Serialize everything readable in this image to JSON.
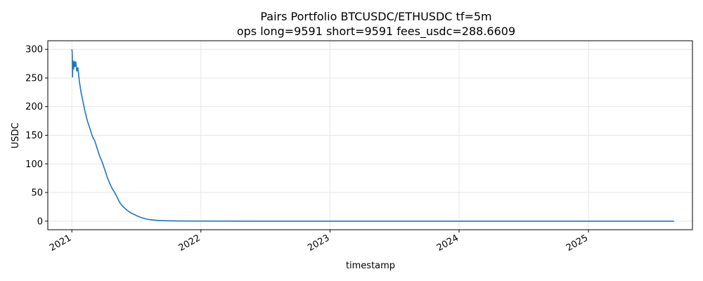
{
  "chart_data": {
    "type": "line",
    "title_lines": [
      "Pairs Portfolio BTCUSDC/ETHUSDC tf=5m",
      "ops long=9591 short=9591 fees_usdc=288.6609"
    ],
    "xlabel": "timestamp",
    "ylabel": "USDC",
    "xlim": [
      "2020-10-25",
      "2025-10-22"
    ],
    "ylim": [
      -15,
      315
    ],
    "x_ticks": [
      {
        "value": "2021-01-01",
        "label": "2021"
      },
      {
        "value": "2022-01-01",
        "label": "2022"
      },
      {
        "value": "2023-01-01",
        "label": "2023"
      },
      {
        "value": "2024-01-01",
        "label": "2024"
      },
      {
        "value": "2025-01-01",
        "label": "2025"
      }
    ],
    "y_ticks": [
      {
        "value": 0,
        "label": "0"
      },
      {
        "value": 50,
        "label": "50"
      },
      {
        "value": 100,
        "label": "100"
      },
      {
        "value": 150,
        "label": "150"
      },
      {
        "value": 200,
        "label": "200"
      },
      {
        "value": 250,
        "label": "250"
      },
      {
        "value": 300,
        "label": "300"
      }
    ],
    "grid": true,
    "series": [
      {
        "color": "#1f77b4",
        "points": [
          [
            "2021-01-01",
            300
          ],
          [
            "2021-01-02",
            295
          ],
          [
            "2021-01-03",
            252
          ],
          [
            "2021-01-04",
            280
          ],
          [
            "2021-01-06",
            266
          ],
          [
            "2021-01-08",
            279
          ],
          [
            "2021-01-10",
            270
          ],
          [
            "2021-01-12",
            278
          ],
          [
            "2021-01-15",
            262
          ],
          [
            "2021-01-18",
            268
          ],
          [
            "2021-01-22",
            245
          ],
          [
            "2021-01-27",
            225
          ],
          [
            "2021-02-01",
            210
          ],
          [
            "2021-02-07",
            192
          ],
          [
            "2021-02-14",
            175
          ],
          [
            "2021-02-21",
            162
          ],
          [
            "2021-02-28",
            148
          ],
          [
            "2021-03-07",
            140
          ],
          [
            "2021-03-14",
            126
          ],
          [
            "2021-03-21",
            113
          ],
          [
            "2021-03-28",
            103
          ],
          [
            "2021-04-04",
            90
          ],
          [
            "2021-04-11",
            77
          ],
          [
            "2021-04-18",
            66
          ],
          [
            "2021-04-25",
            57
          ],
          [
            "2021-05-02",
            50
          ],
          [
            "2021-05-09",
            42
          ],
          [
            "2021-05-16",
            33
          ],
          [
            "2021-05-23",
            27
          ],
          [
            "2021-05-30",
            23
          ],
          [
            "2021-06-06",
            19
          ],
          [
            "2021-06-15",
            15
          ],
          [
            "2021-06-25",
            12
          ],
          [
            "2021-07-05",
            9
          ],
          [
            "2021-07-15",
            6.5
          ],
          [
            "2021-07-28",
            4
          ],
          [
            "2021-08-10",
            2.5
          ],
          [
            "2021-08-25",
            1.6
          ],
          [
            "2021-09-10",
            1
          ],
          [
            "2021-10-01",
            0.6
          ],
          [
            "2021-11-01",
            0.3
          ],
          [
            "2021-12-01",
            0.15
          ],
          [
            "2022-01-01",
            0.05
          ],
          [
            "2022-06-01",
            0
          ],
          [
            "2023-01-01",
            0
          ],
          [
            "2024-01-01",
            0
          ],
          [
            "2025-01-01",
            0
          ],
          [
            "2025-08-31",
            0
          ]
        ]
      }
    ]
  }
}
